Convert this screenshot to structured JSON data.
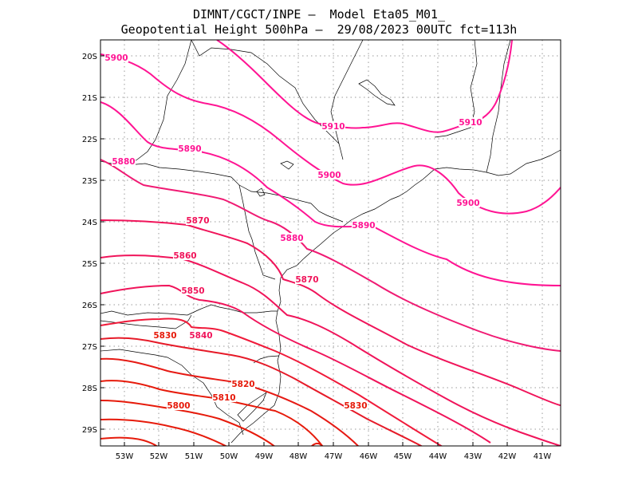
{
  "header": {
    "line1": "DIMNT/CGCT/INPE –  Model Eta05_M01_",
    "line2": "Geopotential Height 500hPa –  29/08/2023 00UTC fct=113h"
  },
  "colors": {
    "high": "#ff1493",
    "mid": "#f0145a",
    "low": "#e61a0a",
    "border": "#000000",
    "grid": "#999999"
  },
  "axes": {
    "lon_ticks": [
      "53W",
      "52W",
      "51W",
      "50W",
      "49W",
      "48W",
      "47W",
      "46W",
      "45W",
      "44W",
      "43W",
      "42W",
      "41W"
    ],
    "lat_ticks": [
      "20S",
      "21S",
      "22S",
      "23S",
      "24S",
      "25S",
      "26S",
      "27S",
      "28S",
      "29S"
    ]
  },
  "contour_labels": [
    {
      "text": "5910",
      "level": 5910
    },
    {
      "text": "5910",
      "level": 5910
    },
    {
      "text": "5900",
      "level": 5900
    },
    {
      "text": "5900",
      "level": 5900
    },
    {
      "text": "5900",
      "level": 5900
    },
    {
      "text": "5890",
      "level": 5890
    },
    {
      "text": "5890",
      "level": 5890
    },
    {
      "text": "5880",
      "level": 5880
    },
    {
      "text": "5880",
      "level": 5880
    },
    {
      "text": "5870",
      "level": 5870
    },
    {
      "text": "5870",
      "level": 5870
    },
    {
      "text": "5860",
      "level": 5860
    },
    {
      "text": "5850",
      "level": 5850
    },
    {
      "text": "5840",
      "level": 5840
    },
    {
      "text": "5830",
      "level": 5830
    },
    {
      "text": "5830",
      "level": 5830
    },
    {
      "text": "5820",
      "level": 5820
    },
    {
      "text": "5810",
      "level": 5810
    },
    {
      "text": "5800",
      "level": 5800
    }
  ]
}
